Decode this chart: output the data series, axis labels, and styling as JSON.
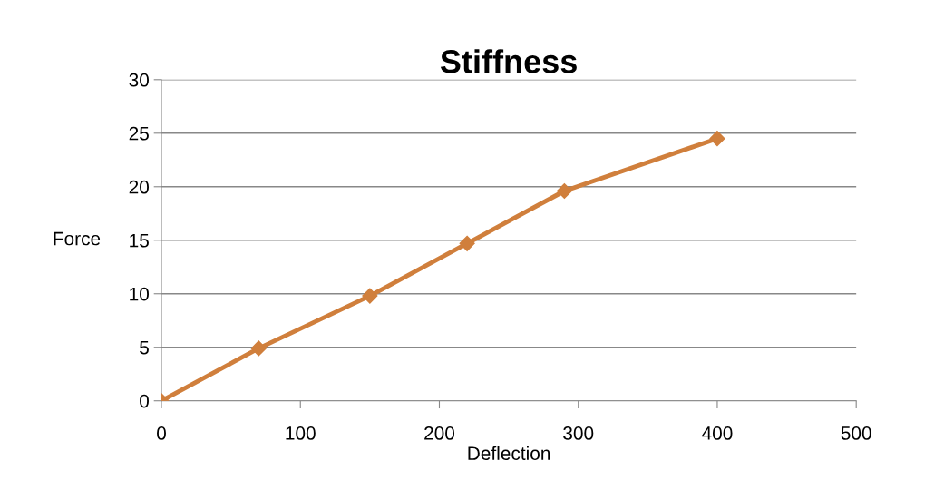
{
  "chart_data": {
    "type": "line",
    "title": "Stiffness",
    "xlabel": "Deflection",
    "ylabel": "Force",
    "x": [
      0,
      70,
      150,
      220,
      290,
      400
    ],
    "series": [
      {
        "color": "#d07f3c",
        "values": [
          0,
          4.9,
          9.8,
          14.7,
          19.6,
          24.5
        ]
      }
    ],
    "xlim": [
      0,
      500
    ],
    "xticks": [
      0,
      100,
      200,
      300,
      400,
      500
    ],
    "ylim": [
      0,
      30
    ],
    "yticks": [
      0,
      5,
      10,
      15,
      20,
      25,
      30
    ],
    "grid": "y",
    "marker": "diamond",
    "line_style": "solid",
    "legend": false
  }
}
